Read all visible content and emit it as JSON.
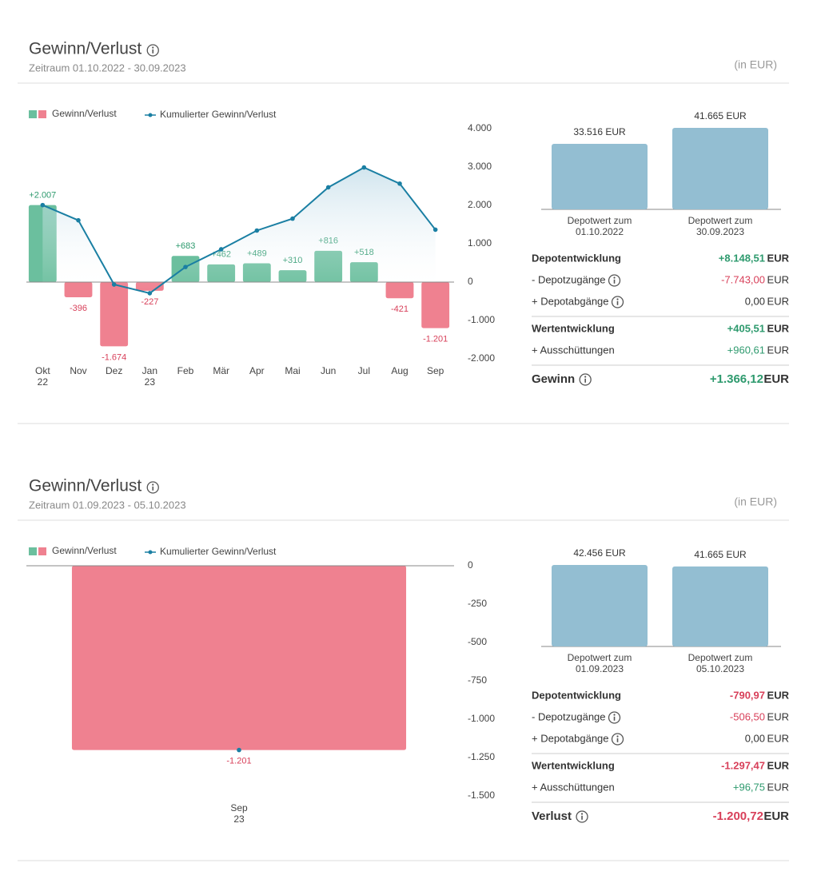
{
  "panels": [
    {
      "title": "Gewinn/Verlust",
      "period": "Zeitraum 01.10.2022 - 30.09.2023",
      "unit_note": "(in EUR)",
      "currency": "EUR",
      "summary": [
        {
          "label": "Depotentwicklung",
          "value": "+8.148,51",
          "tone": "positive",
          "emphasis": "heading",
          "info": false,
          "divider_before": false
        },
        {
          "label": "- Depotzugänge",
          "value": "-7.743,00",
          "tone": "negative",
          "emphasis": "normal",
          "info": true,
          "divider_before": false
        },
        {
          "label": "+ Depotabgänge",
          "value": "0,00",
          "tone": "neutral",
          "emphasis": "normal",
          "info": true,
          "divider_before": false
        },
        {
          "label": "Wertentwicklung",
          "value": "+405,51",
          "tone": "positive",
          "emphasis": "heading",
          "info": false,
          "divider_before": true
        },
        {
          "label": "+ Ausschüttungen",
          "value": "+960,61",
          "tone": "positive",
          "emphasis": "normal",
          "info": false,
          "divider_before": false
        },
        {
          "label": "Gewinn",
          "value": "+1.366,12",
          "tone": "positive",
          "emphasis": "total",
          "info": true,
          "divider_before": true
        }
      ]
    },
    {
      "title": "Gewinn/Verlust",
      "period": "Zeitraum 01.09.2023 - 05.10.2023",
      "unit_note": "(in EUR)",
      "currency": "EUR",
      "summary": [
        {
          "label": "Depotentwicklung",
          "value": "-790,97",
          "tone": "negative",
          "emphasis": "heading",
          "info": false,
          "divider_before": false
        },
        {
          "label": "- Depotzugänge",
          "value": "-506,50",
          "tone": "negative",
          "emphasis": "normal",
          "info": true,
          "divider_before": false
        },
        {
          "label": "+ Depotabgänge",
          "value": "0,00",
          "tone": "neutral",
          "emphasis": "normal",
          "info": true,
          "divider_before": false
        },
        {
          "label": "Wertentwicklung",
          "value": "-1.297,47",
          "tone": "negative",
          "emphasis": "heading",
          "info": false,
          "divider_before": true
        },
        {
          "label": "+ Ausschüttungen",
          "value": "+96,75",
          "tone": "positive",
          "emphasis": "normal",
          "info": false,
          "divider_before": false
        },
        {
          "label": "Verlust",
          "value": "-1.200,72",
          "tone": "negative",
          "emphasis": "total",
          "info": true,
          "divider_before": true
        }
      ]
    }
  ],
  "chart_data": [
    {
      "type": "combo",
      "categories": [
        [
          "Okt",
          "22"
        ],
        [
          "Nov"
        ],
        [
          "Dez"
        ],
        [
          "Jan",
          "23"
        ],
        [
          "Feb"
        ],
        [
          "Mär"
        ],
        [
          "Apr"
        ],
        [
          "Mai"
        ],
        [
          "Jun"
        ],
        [
          "Jul"
        ],
        [
          "Aug"
        ],
        [
          "Sep"
        ]
      ],
      "series": [
        {
          "name": "Gewinn/Verlust",
          "type": "bar",
          "color": "#6bbf9e",
          "negative_color": "#ef8190",
          "values": [
            2007,
            -396,
            -1674,
            -227,
            683,
            462,
            489,
            310,
            816,
            518,
            -421,
            -1201
          ],
          "value_labels": [
            "+2.007",
            "-396",
            "-1.674",
            "-227",
            "+683",
            "+462",
            "+489",
            "+310",
            "+816",
            "+518",
            "-421",
            "-1.201"
          ]
        },
        {
          "name": "Kumulierter Gewinn/Verlust",
          "type": "line",
          "color": "#1a7fa3",
          "values": [
            2007,
            1611,
            -63,
            -290,
            393,
            855,
            1344,
            1654,
            2470,
            2988,
            2567,
            1366
          ]
        }
      ],
      "ylim": [
        -2000,
        4000
      ],
      "yticks": [
        {
          "value": -2000,
          "label": "-2.000"
        },
        {
          "value": -1000,
          "label": "-1.000"
        },
        0,
        {
          "value": 1000,
          "label": "1.000"
        },
        {
          "value": 2000,
          "label": "2.000"
        },
        {
          "value": 3000,
          "label": "3.000"
        },
        {
          "value": 4000,
          "label": "4.000"
        }
      ]
    },
    {
      "type": "bar",
      "categories": [
        [
          "Depotwert zum",
          "01.10.2022"
        ],
        [
          "Depotwert zum",
          "30.09.2023"
        ]
      ],
      "values": [
        33516,
        41665
      ],
      "value_labels": [
        "33.516 EUR",
        "41.665 EUR"
      ],
      "color": "#93bed2"
    },
    {
      "type": "combo",
      "categories": [
        [
          "Sep",
          "23"
        ]
      ],
      "series": [
        {
          "name": "Gewinn/Verlust",
          "type": "bar",
          "color": "#6bbf9e",
          "negative_color": "#ef8190",
          "values": [
            -1201
          ],
          "value_labels": [
            "-1.201"
          ]
        },
        {
          "name": "Kumulierter Gewinn/Verlust",
          "type": "line",
          "color": "#1a7fa3",
          "values": [
            -1201
          ]
        }
      ],
      "ylim": [
        -1500,
        0
      ],
      "yticks": [
        {
          "value": -1500,
          "label": "-1.500"
        },
        {
          "value": -1250,
          "label": "-1.250"
        },
        {
          "value": -1000,
          "label": "-1.000"
        },
        -750,
        -500,
        -250,
        0
      ]
    },
    {
      "type": "bar",
      "categories": [
        [
          "Depotwert zum",
          "01.09.2023"
        ],
        [
          "Depotwert zum",
          "05.10.2023"
        ]
      ],
      "values": [
        42456,
        41665
      ],
      "value_labels": [
        "42.456 EUR",
        "41.665 EUR"
      ],
      "color": "#93bed2"
    }
  ]
}
